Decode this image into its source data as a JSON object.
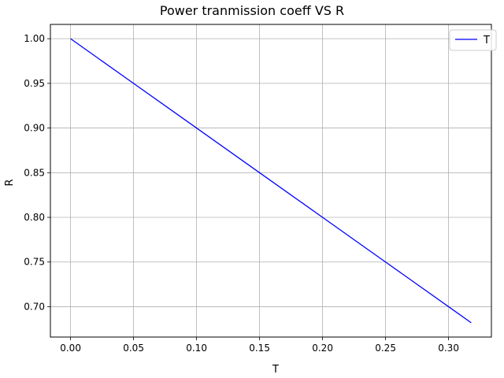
{
  "chart_data": {
    "type": "line",
    "title": "Power tranmission coeff VS R",
    "xlabel": "T",
    "ylabel": "R",
    "xlim": [
      -0.016,
      0.334
    ],
    "ylim": [
      0.666,
      1.016
    ],
    "xticks": [
      0.0,
      0.05,
      0.1,
      0.15,
      0.2,
      0.25,
      0.3
    ],
    "xtick_labels": [
      "0.00",
      "0.05",
      "0.10",
      "0.15",
      "0.20",
      "0.25",
      "0.30"
    ],
    "yticks": [
      0.7,
      0.75,
      0.8,
      0.85,
      0.9,
      0.95,
      1.0
    ],
    "ytick_labels": [
      "0.70",
      "0.75",
      "0.80",
      "0.85",
      "0.90",
      "0.95",
      "1.00"
    ],
    "grid": true,
    "legend_position": "top-right",
    "series": [
      {
        "name": "T",
        "color": "#0000ff",
        "x": [
          0.0,
          0.05,
          0.1,
          0.15,
          0.2,
          0.25,
          0.3,
          0.318
        ],
        "y": [
          1.0,
          0.95,
          0.9,
          0.85,
          0.8,
          0.75,
          0.7,
          0.682
        ]
      }
    ]
  }
}
